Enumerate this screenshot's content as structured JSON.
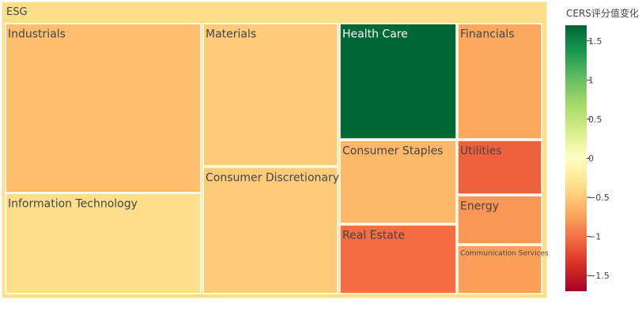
{
  "chart_data": {
    "type": "treemap",
    "root": {
      "label": "ESG",
      "color": "#fee08b"
    },
    "colorbar": {
      "title": "CERS评分值变化",
      "range": [
        -1.7,
        1.7
      ],
      "ticks": [
        1.5,
        1,
        0.5,
        0,
        -0.5,
        -1,
        -1.5
      ],
      "tick_labels": [
        "1.5",
        "1",
        "0.5",
        "0",
        "−0.5",
        "−1",
        "−1.5"
      ],
      "colorscale": [
        "#a50026",
        "#d73027",
        "#f46d43",
        "#fdae61",
        "#fee08b",
        "#ffffbf",
        "#d9ef8b",
        "#a6d96a",
        "#66bd63",
        "#1a9850",
        "#006837"
      ]
    },
    "nodes": [
      {
        "label": "Industrials",
        "color": "#fdbf6f"
      },
      {
        "label": "Information Technology",
        "color": "#fedf8b"
      },
      {
        "label": "Materials",
        "color": "#fdcb7a"
      },
      {
        "label": "Consumer Discretionary",
        "color": "#fdcb7a"
      },
      {
        "label": "Health Care",
        "color": "#006837"
      },
      {
        "label": "Consumer Staples",
        "color": "#fdb86a"
      },
      {
        "label": "Real Estate",
        "color": "#f46d43"
      },
      {
        "label": "Financials",
        "color": "#fca95f"
      },
      {
        "label": "Utilities",
        "color": "#ee613d"
      },
      {
        "label": "Energy",
        "color": "#fa9656"
      },
      {
        "label": "Communication Services",
        "color": "#fc9f5b"
      }
    ]
  }
}
